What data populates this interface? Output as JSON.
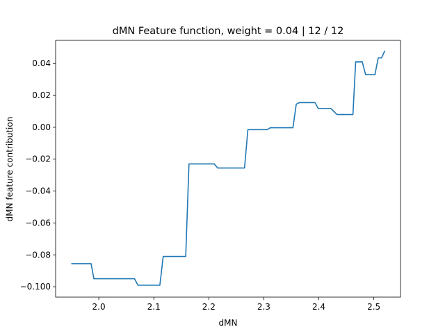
{
  "chart_data": {
    "type": "line",
    "title": "dMN Feature function, weight = 0.04 | 12 / 12",
    "xlabel": "dMN",
    "ylabel": "dMN feature contribution",
    "xlim": [
      1.9215,
      2.5485
    ],
    "ylim": [
      -0.1065,
      0.0545
    ],
    "grid": false,
    "x_ticks": [
      {
        "value": 2.0,
        "label": "2.0"
      },
      {
        "value": 2.1,
        "label": "2.1"
      },
      {
        "value": 2.2,
        "label": "2.2"
      },
      {
        "value": 2.3,
        "label": "2.3"
      },
      {
        "value": 2.4,
        "label": "2.4"
      },
      {
        "value": 2.5,
        "label": "2.5"
      }
    ],
    "y_ticks": [
      {
        "value": -0.1,
        "label": "−0.100"
      },
      {
        "value": -0.08,
        "label": "−0.08"
      },
      {
        "value": -0.06,
        "label": "−0.06"
      },
      {
        "value": -0.04,
        "label": "−0.04"
      },
      {
        "value": -0.02,
        "label": "−0.02"
      },
      {
        "value": 0.0,
        "label": "0.00"
      },
      {
        "value": 0.02,
        "label": "0.02"
      },
      {
        "value": 0.04,
        "label": "0.04"
      }
    ],
    "series": [
      {
        "color": "#1f77b4",
        "x": [
          1.95,
          1.986,
          1.991,
          2.003,
          2.065,
          2.071,
          2.111,
          2.117,
          2.158,
          2.164,
          2.21,
          2.216,
          2.265,
          2.271,
          2.306,
          2.312,
          2.353,
          2.359,
          2.365,
          2.393,
          2.399,
          2.422,
          2.433,
          2.462,
          2.467,
          2.479,
          2.485,
          2.502,
          2.508,
          2.514,
          2.52
        ],
        "y": [
          -0.0855,
          -0.0855,
          -0.095,
          -0.095,
          -0.095,
          -0.099,
          -0.099,
          -0.081,
          -0.081,
          -0.023,
          -0.023,
          -0.0255,
          -0.0255,
          -0.0015,
          -0.0015,
          -0.0003,
          -0.0003,
          0.0145,
          0.0155,
          0.0155,
          0.0118,
          0.0118,
          0.008,
          0.008,
          0.041,
          0.041,
          0.033,
          0.033,
          0.0435,
          0.0435,
          0.048
        ]
      }
    ]
  }
}
